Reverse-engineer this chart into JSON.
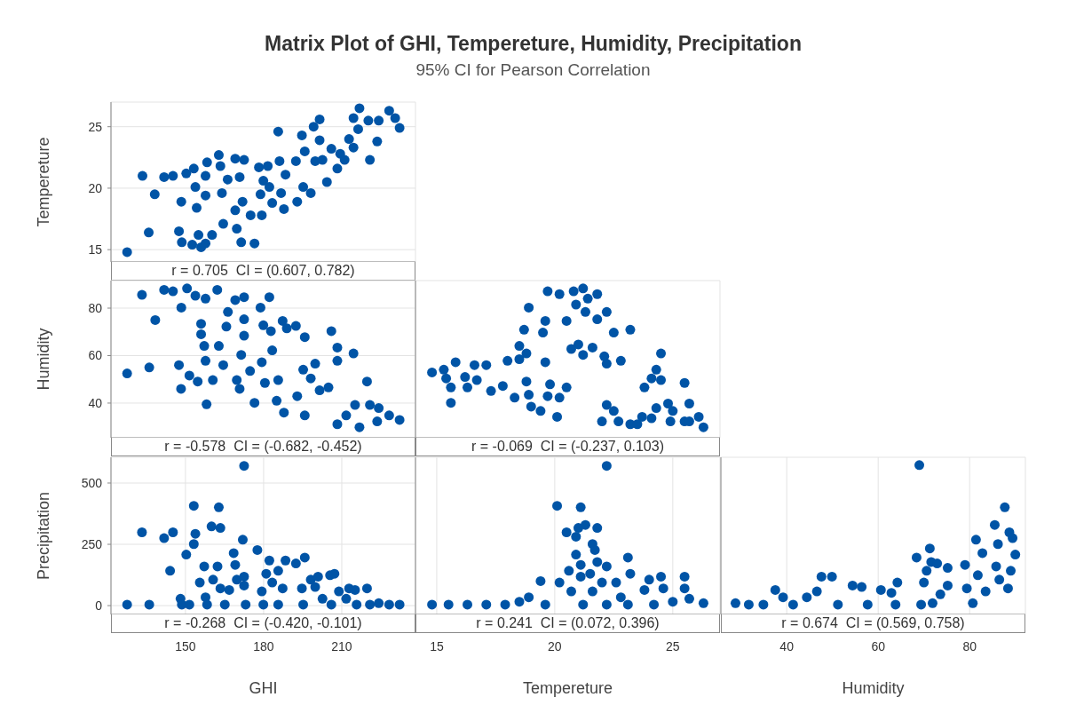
{
  "chart_data": [
    {
      "type": "scatter",
      "title": "Matrix Plot of GHI, Tempereture, Humidity, Precipitation",
      "subtitle": "95% CI for Pearson Correlation",
      "ylabel": "Tempereture",
      "annotations": [
        "r = 0.705  CI = (0.607, 0.782)"
      ],
      "xlim": [
        121.4,
        238.3
      ],
      "ylim": [
        14,
        27
      ],
      "xticks": [
        150,
        180,
        210
      ],
      "yticks": [
        15,
        20,
        25
      ],
      "tick_labels": "y",
      "grid": true,
      "marker": "circle",
      "color": "#0054a6",
      "x": [
        127.6,
        133.5,
        135.9,
        138.2,
        141.8,
        145.2,
        148.4,
        147.5,
        148.6,
        150.3,
        153.2,
        153.8,
        152.6,
        155.0,
        156.0,
        157.7,
        154.3,
        157.7,
        158.3,
        157.7,
        160.2,
        162.8,
        163.4,
        164.0,
        164.5,
        166.2,
        169.1,
        170.8,
        171.9,
        169.1,
        169.7,
        171.4,
        172.5,
        175.0,
        176.5,
        178.2,
        179.3,
        178.8,
        179.9,
        181.6,
        182.2,
        183.3,
        185.6,
        186.1,
        186.7,
        187.8,
        188.4,
        192.4,
        192.9,
        195.2,
        194.7,
        195.8,
        198.1,
        199.8,
        201.5,
        199.2,
        201.5,
        202.6,
        204.3,
        206.0,
        208.3,
        209.4,
        211.1,
        212.8,
        214.5,
        216.3,
        214.5,
        216.8,
        220.2,
        220.8,
        223.6,
        224.2,
        228.2,
        230.5,
        232.2
      ],
      "values": [
        14.8,
        21.0,
        16.4,
        19.5,
        20.9,
        21.0,
        18.9,
        16.5,
        15.6,
        21.2,
        21.6,
        20.1,
        15.4,
        16.2,
        15.2,
        15.5,
        18.4,
        19.4,
        22.1,
        21.0,
        16.2,
        22.7,
        21.8,
        19.6,
        17.1,
        20.7,
        22.4,
        20.9,
        18.9,
        18.2,
        16.7,
        15.6,
        22.3,
        17.8,
        15.5,
        21.7,
        17.8,
        19.5,
        20.6,
        21.8,
        20.1,
        18.8,
        24.6,
        22.2,
        19.6,
        18.3,
        21.1,
        22.2,
        18.9,
        20.1,
        24.3,
        23.0,
        19.6,
        22.2,
        23.9,
        25.0,
        25.6,
        22.3,
        20.5,
        23.2,
        21.6,
        22.8,
        22.3,
        24.0,
        23.3,
        24.8,
        25.7,
        26.5,
        25.5,
        22.3,
        23.8,
        25.5,
        26.3,
        25.7,
        24.9
      ]
    },
    {
      "type": "scatter",
      "ylabel": "Humidity",
      "annotations": [
        "r = -0.578  CI = (-0.682, -0.452)"
      ],
      "xlim": [
        121.4,
        238.3
      ],
      "ylim": [
        25.4,
        91.6
      ],
      "xticks": [
        150,
        180,
        210
      ],
      "yticks": [
        40,
        60,
        80
      ],
      "tick_labels": "y",
      "grid": true,
      "marker": "circle",
      "color": "#0054a6",
      "x": [
        127.6,
        133.3,
        136.1,
        138.4,
        141.8,
        145.2,
        147.5,
        148.3,
        148.4,
        150.6,
        151.5,
        153.8,
        154.7,
        156.0,
        156.0,
        157.2,
        157.7,
        158.1,
        157.7,
        160.5,
        162.2,
        162.8,
        164.5,
        165.7,
        166.3,
        169.1,
        169.7,
        170.8,
        171.4,
        172.5,
        172.5,
        172.5,
        174.8,
        176.5,
        178.8,
        179.3,
        179.9,
        180.5,
        182.2,
        182.8,
        183.3,
        185.6,
        185.0,
        187.3,
        187.8,
        188.9,
        192.4,
        192.9,
        195.2,
        195.8,
        195.8,
        199.8,
        198.1,
        201.5,
        204.9,
        206.0,
        208.3,
        208.3,
        208.3,
        211.7,
        214.5,
        215.1,
        216.8,
        219.7,
        220.8,
        223.6,
        224.2,
        228.2,
        232.2
      ],
      "values": [
        52.5,
        85.6,
        55.0,
        75.0,
        87.7,
        87.1,
        56.0,
        46.0,
        80.2,
        88.3,
        51.6,
        85.2,
        49.1,
        73.4,
        69.0,
        64.1,
        57.8,
        39.5,
        84.0,
        49.7,
        87.7,
        64.1,
        56.0,
        72.2,
        78.4,
        83.4,
        49.7,
        46.0,
        60.3,
        75.3,
        68.4,
        84.6,
        53.5,
        40.1,
        80.2,
        57.2,
        72.8,
        48.5,
        84.6,
        70.3,
        62.2,
        49.7,
        41.0,
        74.6,
        36.0,
        71.5,
        72.5,
        42.9,
        54.1,
        67.8,
        34.8,
        56.6,
        50.4,
        45.4,
        46.6,
        70.3,
        57.8,
        63.4,
        31.1,
        34.8,
        60.9,
        39.2,
        29.8,
        49.1,
        39.2,
        32.3,
        37.9,
        34.8,
        32.9
      ]
    },
    {
      "type": "scatter",
      "annotations": [
        "r = -0.069  CI = (-0.237, 0.103)"
      ],
      "xlim": [
        14.1,
        27
      ],
      "ylim": [
        25.4,
        91.6
      ],
      "xticks": [
        15,
        20,
        25
      ],
      "yticks": [
        40,
        60,
        80
      ],
      "tick_labels": false,
      "grid": true,
      "marker": "circle",
      "color": "#0054a6",
      "x": [
        14.8,
        15.3,
        15.4,
        15.6,
        15.6,
        15.8,
        16.2,
        16.3,
        16.6,
        16.7,
        17.1,
        17.3,
        17.8,
        18.0,
        18.3,
        18.5,
        18.5,
        18.7,
        18.8,
        18.8,
        18.9,
        18.9,
        19.0,
        19.4,
        19.6,
        19.5,
        19.6,
        19.7,
        19.8,
        19.7,
        20.1,
        20.2,
        20.2,
        20.5,
        20.5,
        20.7,
        20.8,
        20.9,
        21.0,
        21.2,
        21.2,
        21.3,
        21.4,
        21.6,
        21.8,
        21.8,
        22.0,
        22.1,
        22.2,
        22.2,
        22.2,
        22.5,
        22.5,
        22.7,
        22.8,
        23.2,
        23.2,
        23.5,
        23.7,
        23.8,
        24.1,
        24.1,
        24.3,
        24.3,
        24.5,
        24.5,
        24.8,
        24.9,
        25.0,
        25.5,
        25.5,
        25.7,
        25.7,
        26.1,
        26.3
      ],
      "values": [
        52.9,
        54.1,
        50.4,
        46.6,
        40.1,
        57.2,
        51.0,
        46.6,
        56.0,
        49.7,
        56.0,
        45.1,
        47.2,
        57.8,
        42.3,
        58.5,
        64.1,
        70.9,
        60.9,
        49.1,
        43.5,
        80.2,
        38.5,
        36.7,
        74.6,
        69.7,
        57.2,
        42.9,
        47.9,
        87.1,
        34.2,
        42.3,
        85.9,
        46.6,
        74.6,
        62.8,
        87.1,
        81.5,
        64.7,
        88.3,
        60.3,
        78.4,
        84.0,
        63.4,
        85.9,
        75.3,
        32.3,
        59.7,
        56.6,
        39.2,
        78.4,
        36.7,
        69.7,
        32.3,
        57.8,
        31.1,
        70.9,
        31.1,
        34.2,
        46.6,
        50.4,
        33.6,
        54.1,
        37.9,
        60.9,
        49.7,
        39.8,
        32.3,
        36.7,
        48.5,
        32.3,
        39.8,
        32.3,
        34.2,
        29.8
      ]
    },
    {
      "type": "scatter",
      "xlabel": "GHI",
      "ylabel": "Precipitation",
      "annotations": [
        "r = -0.268  CI = (-0.420, -0.101)"
      ],
      "xlim": [
        121.4,
        238.3
      ],
      "ylim": [
        -36,
        605
      ],
      "xticks": [
        150,
        180,
        210
      ],
      "yticks": [
        0,
        250,
        500
      ],
      "grid": true,
      "marker": "circle",
      "color": "#0054a6",
      "x": [
        127.6,
        133.3,
        136.1,
        141.8,
        144.1,
        145.2,
        148.1,
        148.6,
        150.3,
        151.5,
        153.2,
        153.2,
        153.8,
        155.5,
        157.2,
        157.7,
        158.3,
        160.0,
        160.6,
        162.3,
        162.8,
        163.4,
        163.4,
        165.1,
        166.8,
        168.5,
        169.1,
        169.7,
        172.0,
        172.5,
        172.5,
        172.5,
        173.1,
        177.6,
        179.3,
        179.9,
        181.0,
        182.2,
        183.3,
        185.6,
        187.3,
        188.4,
        185.6,
        192.4,
        194.7,
        195.8,
        195.2,
        198.1,
        199.8,
        200.9,
        202.6,
        205.5,
        207.2,
        206.0,
        208.9,
        211.7,
        212.8,
        215.1,
        215.7,
        219.7,
        220.8,
        224.2,
        228.2,
        232.2
      ],
      "values": [
        4,
        299,
        4,
        275,
        142,
        299,
        28,
        4,
        208,
        4,
        407,
        251,
        293,
        94,
        160,
        34,
        4,
        323,
        106,
        160,
        401,
        317,
        70,
        4,
        64,
        214,
        166,
        106,
        269,
        570,
        118,
        82,
        4,
        227,
        58,
        4,
        130,
        184,
        94,
        142,
        70,
        184,
        4,
        172,
        70,
        196,
        4,
        106,
        76,
        118,
        28,
        124,
        130,
        4,
        58,
        28,
        70,
        64,
        4,
        70,
        4,
        10,
        4,
        4
      ]
    },
    {
      "type": "scatter",
      "xlabel": "Tempereture",
      "annotations": [
        "r = 0.241  CI = (0.072, 0.396)"
      ],
      "xlim": [
        14.1,
        27
      ],
      "ylim": [
        -36,
        605
      ],
      "xticks": [
        15,
        20,
        25
      ],
      "yticks": [
        0,
        250,
        500
      ],
      "tick_labels": "x",
      "grid": true,
      "marker": "circle",
      "color": "#0054a6",
      "x": [
        14.8,
        15.5,
        16.3,
        17.1,
        17.9,
        18.5,
        18.9,
        19.4,
        19.6,
        20.1,
        20.2,
        20.5,
        20.6,
        20.7,
        20.9,
        20.9,
        21.0,
        21.1,
        21.1,
        21.1,
        21.2,
        21.3,
        21.5,
        21.6,
        21.7,
        21.6,
        21.8,
        21.8,
        22.0,
        22.2,
        22.2,
        22.2,
        22.6,
        22.8,
        23.1,
        23.2,
        23.1,
        23.8,
        24.0,
        24.2,
        24.5,
        24.6,
        25.0,
        25.5,
        25.5,
        25.7,
        26.3
      ],
      "values": [
        4,
        4,
        4,
        4,
        4,
        16,
        34,
        100,
        4,
        407,
        94,
        299,
        142,
        58,
        281,
        208,
        317,
        118,
        401,
        166,
        4,
        329,
        130,
        251,
        227,
        58,
        317,
        178,
        94,
        570,
        160,
        4,
        94,
        34,
        196,
        130,
        4,
        64,
        106,
        4,
        118,
        70,
        16,
        118,
        70,
        28,
        10
      ]
    },
    {
      "type": "scatter",
      "xlabel": "Humidity",
      "annotations": [
        "r = 0.674  CI = (0.569, 0.758)"
      ],
      "xlim": [
        25.6,
        92.2
      ],
      "ylim": [
        -36,
        605
      ],
      "xticks": [
        40,
        60,
        80
      ],
      "yticks": [
        0,
        250,
        500
      ],
      "tick_labels": "x",
      "grid": true,
      "marker": "circle",
      "color": "#0054a6",
      "x": [
        28.8,
        31.7,
        34.9,
        37.5,
        39.2,
        41.4,
        44.4,
        46.6,
        47.6,
        49.9,
        51.2,
        54.4,
        56.4,
        57.7,
        60.6,
        62.9,
        64.2,
        63.8,
        69.0,
        68.4,
        69.4,
        70.0,
        70.6,
        71.3,
        71.6,
        72.9,
        71.9,
        73.6,
        75.2,
        75.2,
        79.0,
        79.4,
        80.7,
        81.4,
        81.8,
        82.8,
        83.5,
        85.5,
        85.8,
        86.2,
        86.5,
        87.7,
        88.4,
        88.7,
        89.4,
        89.0,
        90.0
      ],
      "values": [
        10,
        4,
        4,
        64,
        34,
        4,
        34,
        58,
        118,
        118,
        4,
        82,
        76,
        4,
        64,
        52,
        94,
        4,
        573,
        196,
        4,
        94,
        142,
        233,
        178,
        172,
        10,
        46,
        154,
        82,
        166,
        70,
        10,
        269,
        124,
        214,
        58,
        329,
        160,
        251,
        106,
        401,
        70,
        299,
        275,
        142,
        208
      ]
    }
  ]
}
